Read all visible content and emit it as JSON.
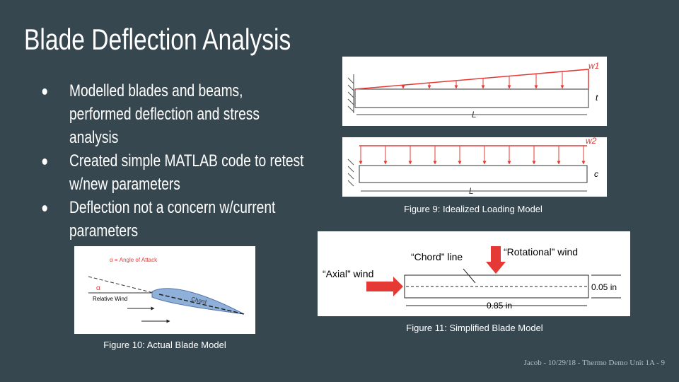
{
  "header": {
    "title": "Blade Deflection Analysis"
  },
  "bullets": [
    "Modelled blades and beams, performed deflection and stress analysis",
    "Created simple MATLAB code to retest w/new parameters",
    "Deflection not a concern w/current parameters"
  ],
  "figures": [
    {
      "caption": "Figure 9: Idealized Loading Model",
      "labels": [
        "w1",
        "t",
        "L",
        "w2",
        "c",
        "L"
      ]
    },
    {
      "caption": "Figure 10: Actual Blade Model",
      "labels": [
        "α = Angle of Attack",
        "α",
        "Relative Wind",
        "Chord"
      ]
    },
    {
      "caption": "Figure 11: Simplified Blade Model",
      "labels": [
        "“Chord” line",
        "“Rotational” wind",
        "“Axial” wind",
        "0.05 in",
        "0.85 in"
      ]
    }
  ],
  "footer": "Jacob - 10/29/18 - Thermo Demo Unit 1A - 9"
}
